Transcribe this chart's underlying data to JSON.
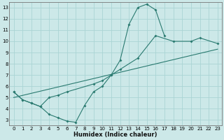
{
  "xlabel": "Humidex (Indice chaleur)",
  "bg_color": "#cce8e8",
  "grid_color": "#aad4d4",
  "line_color": "#2a7a70",
  "xlim": [
    -0.5,
    23.5
  ],
  "ylim": [
    2.5,
    13.5
  ],
  "xticks": [
    0,
    1,
    2,
    3,
    4,
    5,
    6,
    7,
    8,
    9,
    10,
    11,
    12,
    13,
    14,
    15,
    16,
    17,
    18,
    19,
    20,
    21,
    22,
    23
  ],
  "yticks": [
    3,
    4,
    5,
    6,
    7,
    8,
    9,
    10,
    11,
    12,
    13
  ],
  "curve1_x": [
    0,
    1,
    2,
    3,
    4,
    5,
    6,
    7,
    8,
    9,
    10,
    11,
    12,
    13,
    14,
    15,
    16,
    17
  ],
  "curve1_y": [
    5.5,
    4.8,
    4.5,
    4.2,
    3.5,
    3.2,
    2.9,
    2.8,
    4.3,
    5.5,
    6.0,
    7.0,
    8.3,
    11.5,
    13.0,
    13.3,
    12.8,
    10.5
  ],
  "curve2_x": [
    0,
    1,
    2,
    3,
    4,
    5,
    6,
    9,
    10,
    11,
    12,
    14,
    16,
    18,
    20,
    21,
    23
  ],
  "curve2_y": [
    5.5,
    4.8,
    4.5,
    4.2,
    5.0,
    5.2,
    5.5,
    6.2,
    6.5,
    7.0,
    7.5,
    8.5,
    10.5,
    10.0,
    10.0,
    10.3,
    9.8
  ],
  "line3_x": [
    0,
    23
  ],
  "line3_y": [
    5.0,
    9.3
  ]
}
